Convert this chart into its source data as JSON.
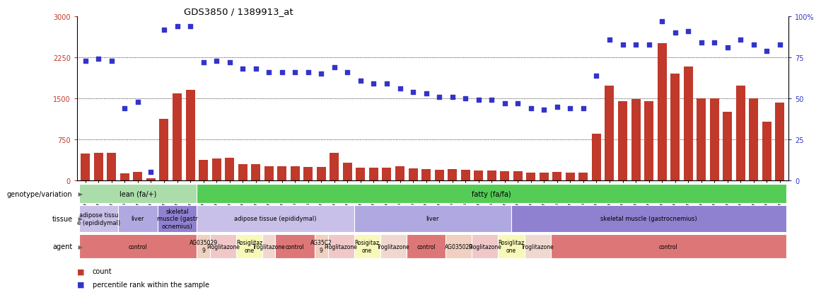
{
  "title": "GDS3850 / 1389913_at",
  "samples": [
    "GSM532993",
    "GSM532994",
    "GSM532995",
    "GSM533011",
    "GSM533012",
    "GSM533013",
    "GSM533029",
    "GSM533030",
    "GSM533031",
    "GSM532987",
    "GSM532988",
    "GSM532989",
    "GSM532996",
    "GSM532997",
    "GSM532998",
    "GSM532999",
    "GSM533000",
    "GSM533001",
    "GSM533002",
    "GSM533003",
    "GSM533004",
    "GSM532990",
    "GSM532991",
    "GSM532992",
    "GSM533005",
    "GSM533006",
    "GSM533007",
    "GSM533014",
    "GSM533015",
    "GSM533016",
    "GSM533017",
    "GSM533018",
    "GSM533019",
    "GSM533020",
    "GSM533021",
    "GSM533022",
    "GSM533008",
    "GSM533009",
    "GSM533010",
    "GSM533023",
    "GSM533024",
    "GSM533025",
    "GSM533032",
    "GSM533033",
    "GSM533034",
    "GSM533035",
    "GSM533036",
    "GSM533037",
    "GSM533038",
    "GSM533039",
    "GSM533040",
    "GSM533026",
    "GSM533027",
    "GSM533028"
  ],
  "counts": [
    490,
    510,
    500,
    130,
    155,
    45,
    1130,
    1590,
    1660,
    370,
    400,
    410,
    300,
    300,
    255,
    255,
    260,
    250,
    250,
    510,
    325,
    235,
    228,
    230,
    255,
    215,
    208,
    190,
    207,
    200,
    188,
    188,
    172,
    172,
    142,
    140,
    155,
    142,
    138,
    850,
    1740,
    1450,
    1490,
    1450,
    2510,
    1960,
    2090,
    1500,
    1500,
    1260,
    1740,
    1500,
    1080,
    1430
  ],
  "percentiles": [
    73,
    74,
    73,
    44,
    48,
    5,
    92,
    94,
    94,
    72,
    73,
    72,
    68,
    68,
    66,
    66,
    66,
    66,
    65,
    69,
    66,
    61,
    59,
    59,
    56,
    54,
    53,
    51,
    51,
    50,
    49,
    49,
    47,
    47,
    44,
    43,
    45,
    44,
    44,
    64,
    86,
    83,
    83,
    83,
    97,
    90,
    91,
    84,
    84,
    81,
    86,
    83,
    79,
    83
  ],
  "ymax": 3000,
  "yticks_left": [
    0,
    750,
    1500,
    2250,
    3000
  ],
  "yticks_right": [
    0,
    25,
    50,
    75,
    100
  ],
  "bar_color": "#c0392b",
  "dot_color": "#3333cc",
  "genotype_blocks": [
    {
      "label": "lean (fa/+)",
      "start": 0,
      "end": 8,
      "color": "#aaddaa"
    },
    {
      "label": "fatty (fa/fa)",
      "start": 9,
      "end": 53,
      "color": "#55cc55"
    }
  ],
  "tissue_blocks": [
    {
      "label": "adipose tissu\ne (epididymal)",
      "start": 0,
      "end": 2,
      "color": "#c8c0e8"
    },
    {
      "label": "liver",
      "start": 3,
      "end": 5,
      "color": "#b0a8e0"
    },
    {
      "label": "skeletal\nmuscle (gastr\nocnemius)",
      "start": 6,
      "end": 8,
      "color": "#9080d0"
    },
    {
      "label": "adipose tissue (epididymal)",
      "start": 9,
      "end": 20,
      "color": "#c8c0e8"
    },
    {
      "label": "liver",
      "start": 21,
      "end": 32,
      "color": "#b0a8e0"
    },
    {
      "label": "skeletal muscle (gastrocnemius)",
      "start": 33,
      "end": 53,
      "color": "#9080d0"
    }
  ],
  "agent_blocks": [
    {
      "label": "control",
      "start": 0,
      "end": 8,
      "color": "#dd7777"
    },
    {
      "label": "AG035029\n9",
      "start": 9,
      "end": 9,
      "color": "#f0d0c0"
    },
    {
      "label": "Pioglitazone",
      "start": 10,
      "end": 11,
      "color": "#f0c8c8"
    },
    {
      "label": "Rosiglitaz\none",
      "start": 12,
      "end": 13,
      "color": "#f8f8b8"
    },
    {
      "label": "Troglitazone",
      "start": 14,
      "end": 14,
      "color": "#f0d8d0"
    },
    {
      "label": "control",
      "start": 15,
      "end": 17,
      "color": "#dd7777"
    },
    {
      "label": "AG35C2\n9",
      "start": 18,
      "end": 18,
      "color": "#f0d0c0"
    },
    {
      "label": "Pioglitazone",
      "start": 19,
      "end": 20,
      "color": "#f0c8c8"
    },
    {
      "label": "Rosigitaz\none",
      "start": 21,
      "end": 22,
      "color": "#f8f8b8"
    },
    {
      "label": "Troglitazone",
      "start": 23,
      "end": 24,
      "color": "#f0d8d0"
    },
    {
      "label": "control",
      "start": 25,
      "end": 27,
      "color": "#dd7777"
    },
    {
      "label": "AG035029",
      "start": 28,
      "end": 29,
      "color": "#f0d0c0"
    },
    {
      "label": "Pioglitazone",
      "start": 30,
      "end": 31,
      "color": "#f0c8c8"
    },
    {
      "label": "Rosiglitaz\none",
      "start": 32,
      "end": 33,
      "color": "#f8f8b8"
    },
    {
      "label": "Troglitazone",
      "start": 34,
      "end": 35,
      "color": "#f0d8d0"
    },
    {
      "label": "control",
      "start": 36,
      "end": 53,
      "color": "#dd7777"
    }
  ],
  "lean_count": 9,
  "row_labels": [
    "genotype/variation",
    "tissue",
    "agent"
  ]
}
